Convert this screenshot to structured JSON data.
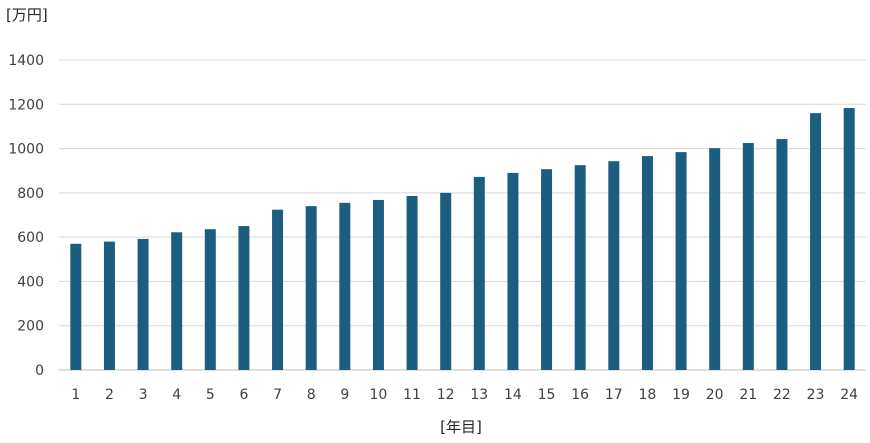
{
  "chart_data": {
    "type": "bar",
    "title": "",
    "xlabel": "[年目]",
    "ylabel": "[万円]",
    "categories": [
      "1",
      "2",
      "3",
      "4",
      "5",
      "6",
      "7",
      "8",
      "9",
      "10",
      "11",
      "12",
      "13",
      "14",
      "15",
      "16",
      "17",
      "18",
      "19",
      "20",
      "21",
      "22",
      "23",
      "24"
    ],
    "values": [
      570,
      580,
      592,
      622,
      636,
      650,
      724,
      740,
      755,
      768,
      786,
      800,
      872,
      890,
      907,
      925,
      943,
      966,
      984,
      1002,
      1025,
      1043,
      1160,
      1183
    ],
    "ylim": [
      0,
      1400
    ],
    "yticks": [
      0,
      200,
      400,
      600,
      800,
      1000,
      1200,
      1400
    ],
    "grid": true,
    "legend": "none",
    "bar_color": "#1b5e7f",
    "grid_color": "#d9d9d9"
  }
}
